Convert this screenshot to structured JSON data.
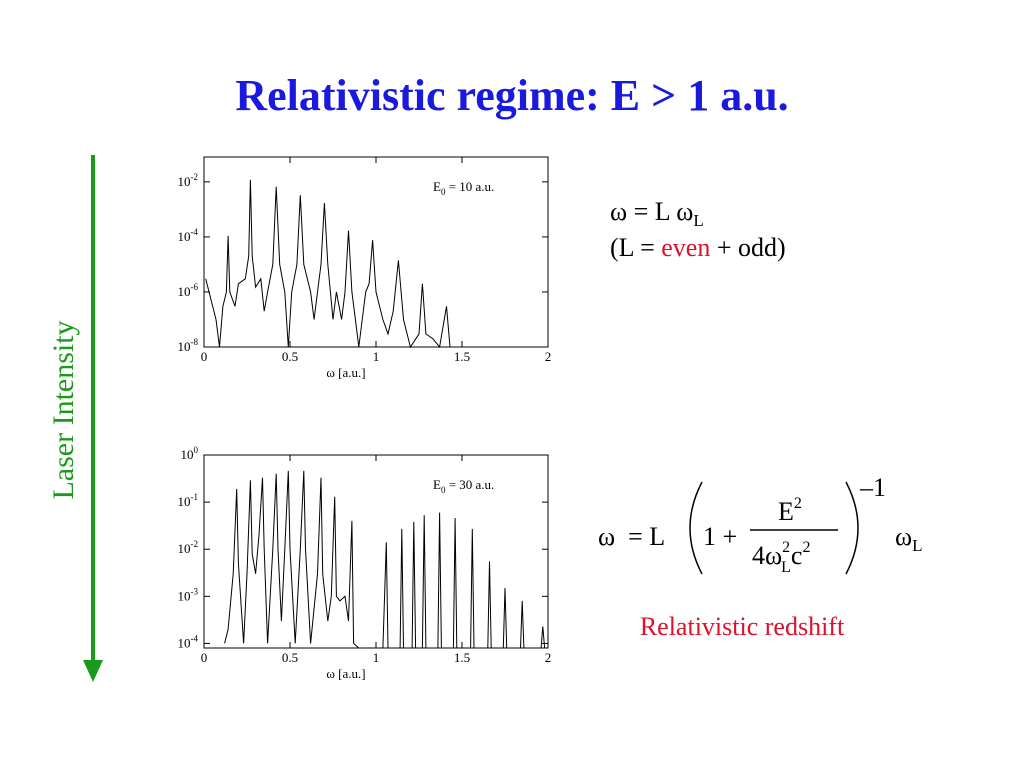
{
  "slide": {
    "title": "Relativistic regime: E > 1 a.u.",
    "side_label": "Laser Intensity",
    "formula1": {
      "lhs": "ω = L ω",
      "sub": "L",
      "open": "(L = ",
      "even": "even",
      "close": " + odd)"
    },
    "formula2": {
      "lhs": "ω  = L",
      "one": "1 +",
      "num": "E",
      "num_exp": "2",
      "den": "4ω",
      "den_exp": "2",
      "den_sub": "L",
      "den_c": "c",
      "den_c_exp": "2",
      "power": "–1",
      "rhs": "ω",
      "rhs_sub": "L"
    },
    "caption": "Relativistic redshift"
  },
  "chart_data": [
    {
      "type": "line",
      "annotation": {
        "text": "E",
        "sub": "0",
        "rest": " = 10 a.u."
      },
      "x_label": "ω [a.u.]",
      "color": "#000000",
      "log_y": true,
      "xlim": [
        0,
        2
      ],
      "xticks": [
        0,
        0.5,
        1,
        1.5,
        2
      ],
      "ylim": [
        1e-08,
        0.08
      ],
      "yticks": [
        {
          "value": 1e-08,
          "label": "10",
          "exp": "-8"
        },
        {
          "value": 1e-06,
          "label": "10",
          "exp": "-6"
        },
        {
          "value": 0.0001,
          "label": "10",
          "exp": "-4"
        },
        {
          "value": 0.01,
          "label": "10",
          "exp": "-2"
        }
      ],
      "x": [
        0.01,
        0.07,
        0.09,
        0.11,
        0.13,
        0.14,
        0.15,
        0.18,
        0.2,
        0.24,
        0.26,
        0.27,
        0.28,
        0.3,
        0.33,
        0.35,
        0.37,
        0.4,
        0.42,
        0.44,
        0.47,
        0.49,
        0.51,
        0.54,
        0.56,
        0.58,
        0.62,
        0.64,
        0.66,
        0.68,
        0.7,
        0.72,
        0.75,
        0.77,
        0.8,
        0.82,
        0.84,
        0.86,
        0.88,
        0.9,
        0.94,
        0.96,
        0.98,
        1.0,
        1.04,
        1.07,
        1.1,
        1.13,
        1.16,
        1.2,
        1.25,
        1.27,
        1.29,
        1.33,
        1.37,
        1.41,
        1.43,
        1.47
      ],
      "values": [
        3e-06,
        1e-07,
        1e-08,
        3e-07,
        1e-06,
        0.00011,
        1e-06,
        3e-07,
        2e-06,
        3e-06,
        2e-05,
        0.012,
        2e-05,
        1.5e-06,
        3e-06,
        2e-07,
        1e-06,
        1e-05,
        0.0066,
        1e-05,
        1e-06,
        1e-08,
        1e-06,
        1e-05,
        0.0033,
        1e-05,
        1e-06,
        1e-07,
        1e-06,
        1e-05,
        0.0017,
        1e-05,
        1e-07,
        1e-06,
        1e-07,
        1e-06,
        0.00017,
        1e-06,
        1e-07,
        1e-08,
        1e-06,
        2e-06,
        7.6e-05,
        1e-06,
        1e-07,
        3e-08,
        2e-07,
        1.4e-05,
        1e-07,
        1e-08,
        3e-08,
        2e-06,
        3e-08,
        2e-08,
        1e-08,
        3e-07,
        1e-08,
        1e-08
      ]
    },
    {
      "type": "line",
      "annotation": {
        "text": "E",
        "sub": "0",
        "rest": " = 30 a.u."
      },
      "x_label": "ω [a.u.]",
      "color": "#000000",
      "log_y": true,
      "xlim": [
        0,
        2
      ],
      "xticks": [
        0,
        0.5,
        1,
        1.5,
        2
      ],
      "ylim": [
        8e-05,
        1
      ],
      "yticks": [
        {
          "value": 0.0001,
          "label": "10",
          "exp": "-4"
        },
        {
          "value": 0.001,
          "label": "10",
          "exp": "-3"
        },
        {
          "value": 0.01,
          "label": "10",
          "exp": "-2"
        },
        {
          "value": 0.1,
          "label": "10",
          "exp": "-1"
        },
        {
          "value": 1,
          "label": "10",
          "exp": "0"
        }
      ],
      "x": [
        0.12,
        0.14,
        0.17,
        0.19,
        0.2,
        0.23,
        0.25,
        0.27,
        0.28,
        0.3,
        0.32,
        0.34,
        0.35,
        0.37,
        0.4,
        0.42,
        0.43,
        0.45,
        0.47,
        0.49,
        0.5,
        0.53,
        0.56,
        0.58,
        0.59,
        0.62,
        0.66,
        0.68,
        0.69,
        0.72,
        0.74,
        0.76,
        0.77,
        0.79,
        0.82,
        0.84,
        0.86,
        0.87,
        0.9,
        1.04,
        1.06,
        1.07,
        1.14,
        1.15,
        1.16,
        1.21,
        1.22,
        1.23,
        1.27,
        1.28,
        1.29,
        1.36,
        1.37,
        1.38,
        1.45,
        1.46,
        1.47,
        1.55,
        1.56,
        1.57,
        1.65,
        1.66,
        1.67,
        1.74,
        1.75,
        1.76,
        1.84,
        1.85,
        1.86,
        1.96,
        1.97,
        1.98
      ],
      "values": [
        0.0001,
        0.0002,
        0.003,
        0.19,
        0.005,
        0.0001,
        0.003,
        0.29,
        0.008,
        0.003,
        0.02,
        0.33,
        0.01,
        0.0001,
        0.01,
        0.4,
        0.01,
        0.0003,
        0.01,
        0.46,
        0.01,
        0.0001,
        0.01,
        0.46,
        0.01,
        0.0001,
        0.003,
        0.33,
        0.003,
        0.0003,
        0.001,
        0.13,
        0.001,
        0.0008,
        0.001,
        0.0003,
        0.04,
        0.0001,
        8e-05,
        8e-05,
        0.014,
        8e-05,
        8e-05,
        0.027,
        8e-05,
        8e-05,
        0.038,
        8e-05,
        8e-05,
        0.053,
        8e-05,
        8e-05,
        0.06,
        8e-05,
        8e-05,
        0.046,
        8e-05,
        8e-05,
        0.027,
        8e-05,
        8e-05,
        0.0055,
        8e-05,
        8e-05,
        0.0015,
        8e-05,
        8e-05,
        0.0008,
        8e-05,
        8e-05,
        0.00023,
        8e-05
      ]
    }
  ]
}
